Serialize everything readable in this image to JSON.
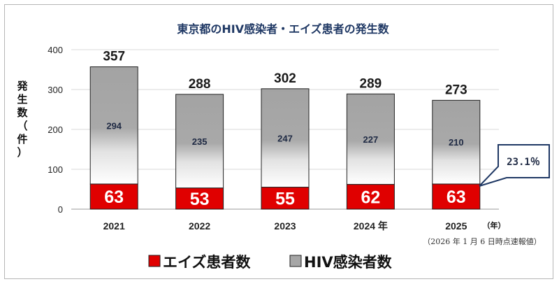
{
  "chart_data": {
    "type": "bar",
    "stacked": true,
    "title": "東京都のHIV感染者・エイズ患者の発生数",
    "categories": [
      "2021",
      "2022",
      "2023",
      "2024 年",
      "2025"
    ],
    "series": [
      {
        "name": "エイズ患者数",
        "values": [
          63,
          53,
          55,
          62,
          63
        ],
        "color": "#e00000"
      },
      {
        "name": "HIV感染者数",
        "values": [
          294,
          235,
          247,
          227,
          210
        ],
        "color": "#a6a6a6"
      }
    ],
    "totals": [
      357,
      288,
      302,
      289,
      273
    ],
    "ylabel": "発生数（件）",
    "ylim": [
      0,
      400
    ],
    "yticks": [
      0,
      100,
      200,
      300,
      400
    ],
    "x_unit": "（年）",
    "grid": true,
    "legend_position": "bottom",
    "note": "（2026 年 1 月 6 日時点速報値）",
    "callout": "23.1％"
  }
}
